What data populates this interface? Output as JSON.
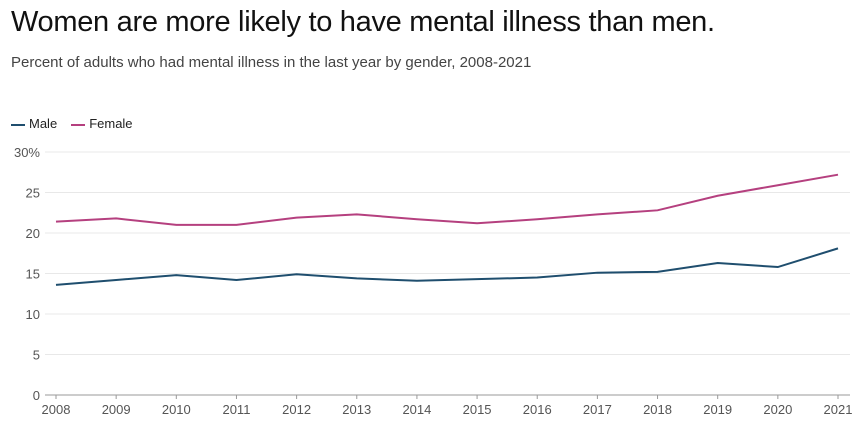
{
  "chart_data": {
    "type": "line",
    "title": "Women are more likely to have mental illness than men.",
    "subtitle": "Percent of adults who had mental illness in the last year by gender, 2008-2021",
    "x": [
      2008,
      2009,
      2010,
      2011,
      2012,
      2013,
      2014,
      2015,
      2016,
      2017,
      2018,
      2019,
      2020,
      2021
    ],
    "series": [
      {
        "name": "Male",
        "color": "#1f4e6e",
        "values": [
          13.6,
          14.2,
          14.8,
          14.2,
          14.9,
          14.4,
          14.1,
          14.3,
          14.5,
          15.1,
          15.2,
          16.3,
          15.8,
          18.1
        ]
      },
      {
        "name": "Female",
        "color": "#b5407f",
        "values": [
          21.4,
          21.8,
          21.0,
          21.0,
          21.9,
          22.3,
          21.7,
          21.2,
          21.7,
          22.3,
          22.8,
          24.6,
          25.9,
          27.2
        ]
      }
    ],
    "yticks": [
      "0",
      "5",
      "10",
      "15",
      "20",
      "25",
      "30%"
    ],
    "ytick_values": [
      0,
      5,
      10,
      15,
      20,
      25,
      30
    ],
    "ylim": [
      0,
      30
    ],
    "grid": true,
    "legend_position": "top-left"
  }
}
